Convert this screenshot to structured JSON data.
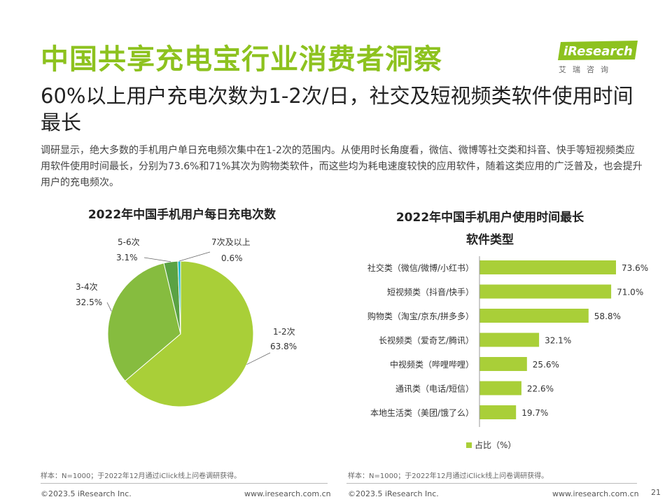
{
  "header": {
    "title": "中国共享充电宝行业消费者洞察",
    "subtitle": "60%以上用户充电次数为1-2次/日，社交及短视频类软件使用时间最长",
    "description": "调研显示，绝大多数的手机用户单日充电频次集中在1-2次的范围内。从使用时长角度看，微信、微博等社交类和抖音、快手等短视频类应用软件使用时间最长，分别为73.6%和71%其次为购物类软件，而这些均为耗电速度较快的应用软件，随着这类应用的广泛普及，也会提升用户的充电频次。"
  },
  "logo": {
    "name": "iResearch",
    "cn": "艾瑞咨询"
  },
  "colors": {
    "green": "#8dc21f",
    "pie_light": "#a9cf38",
    "pie_mid": "#86bc3f",
    "pie_dark": "#5aa243",
    "pie_cyan": "#16b8c8"
  },
  "chart_data": [
    {
      "type": "pie",
      "title": "2022年中国手机用户每日充电次数",
      "slices": [
        {
          "label": "1-2次",
          "value": 63.8,
          "display": "63.8%"
        },
        {
          "label": "3-4次",
          "value": 32.5,
          "display": "32.5%"
        },
        {
          "label": "5-6次",
          "value": 3.1,
          "display": "3.1%"
        },
        {
          "label": "7次及以上",
          "value": 0.6,
          "display": "0.6%"
        }
      ]
    },
    {
      "type": "bar",
      "orientation": "horizontal",
      "title_line1": "2022年中国手机用户使用时间最长",
      "title_line2": "软件类型",
      "categories": [
        "社交类（微信/微博/小红书）",
        "短视频类（抖音/快手）",
        "购物类（淘宝/京东/拼多多）",
        "长视频类（爱奇艺/腾讯）",
        "中视频类（哔哩哔哩）",
        "通讯类（电话/短信）",
        "本地生活类（美团/饿了么）"
      ],
      "values": [
        73.6,
        71.0,
        58.8,
        32.1,
        25.6,
        22.6,
        19.7
      ],
      "value_labels": [
        "73.6%",
        "71.0%",
        "58.8%",
        "32.1%",
        "25.6%",
        "22.6%",
        "19.7%"
      ],
      "legend": "占比（%）",
      "xlim": [
        0,
        80
      ]
    }
  ],
  "notes": {
    "left": "样本：N=1000；于2022年12月通过iClick线上问卷调研获得。",
    "right": "样本：N=1000；于2022年12月通过iClick线上问卷调研获得。"
  },
  "footer": {
    "copyright_left": "©2023.5 iResearch Inc.",
    "url_left": "www.iresearch.com.cn",
    "copyright_right": "©2023.5 iResearch Inc.",
    "url_right": "www.iresearch.com.cn",
    "page_number": "21"
  }
}
